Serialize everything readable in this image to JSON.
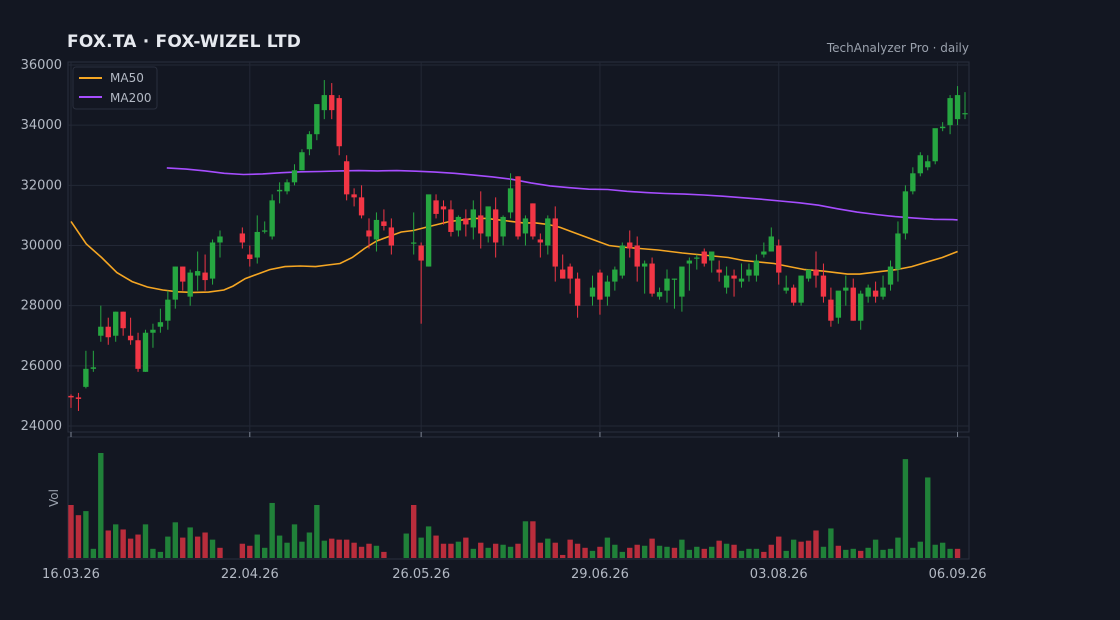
{
  "header": {
    "title": "FOX.TA  ·  FOX-WIZEL LTD",
    "source": "TechAnalyzer Pro · daily"
  },
  "colors": {
    "background": "#131722",
    "up": "#26a641",
    "down": "#f23645",
    "ma50": "#f5a623",
    "ma200": "#a64dff",
    "grid": "#232836"
  },
  "chart_data": {
    "type": "candlestick",
    "title": "FOX.TA  ·  FOX-WIZEL LTD",
    "ylim": [
      23800,
      36100
    ],
    "yticks": [
      24000,
      26000,
      28000,
      30000,
      32000,
      34000,
      36000
    ],
    "ytick_labels": [
      "24000",
      "26000",
      "28000",
      "30000",
      "32000",
      "34000",
      "36000"
    ],
    "xtick_labels": [
      "16.03.26",
      "22.04.26",
      "26.05.26",
      "29.06.26",
      "03.08.26",
      "06.09.26"
    ],
    "xtick_index": [
      0,
      24,
      47,
      71,
      95,
      119
    ],
    "grid": true,
    "legend_position": "top-left",
    "volume_label": "Vol",
    "series": [
      {
        "name": "MA50",
        "color": "#f5a623"
      },
      {
        "name": "MA200",
        "color": "#a64dff"
      }
    ],
    "candles": [
      [
        25000,
        25050,
        24600,
        24950
      ],
      [
        24950,
        25100,
        24500,
        24900
      ],
      [
        25300,
        26500,
        25250,
        25900
      ],
      [
        25900,
        26500,
        25800,
        25950
      ],
      [
        27000,
        28000,
        26800,
        27300
      ],
      [
        27300,
        27600,
        26700,
        26950
      ],
      [
        27000,
        27800,
        26800,
        27800
      ],
      [
        27800,
        27800,
        27000,
        27250
      ],
      [
        27000,
        27600,
        26700,
        26850
      ],
      [
        26850,
        27100,
        25800,
        25900
      ],
      [
        25800,
        27200,
        25800,
        27100
      ],
      [
        27100,
        27400,
        26600,
        27200
      ],
      [
        27300,
        27900,
        27100,
        27450
      ],
      [
        27500,
        28500,
        27200,
        28200
      ],
      [
        28200,
        29300,
        27900,
        29300
      ],
      [
        29300,
        29300,
        28500,
        28800
      ],
      [
        28300,
        29200,
        28000,
        29100
      ],
      [
        29000,
        29800,
        28500,
        29150
      ],
      [
        29100,
        29700,
        28500,
        28850
      ],
      [
        28900,
        30200,
        28700,
        30100
      ],
      [
        30100,
        30500,
        29600,
        30300
      ],
      [
        null,
        null,
        null,
        null
      ],
      [
        null,
        null,
        null,
        null
      ],
      [
        30400,
        30600,
        29900,
        30100
      ],
      [
        29700,
        30000,
        29300,
        29550
      ],
      [
        29600,
        31000,
        29400,
        30450
      ],
      [
        30500,
        30800,
        30400,
        30500
      ],
      [
        30300,
        31700,
        30200,
        31500
      ],
      [
        31800,
        32100,
        31400,
        31850
      ],
      [
        31800,
        32200,
        31700,
        32100
      ],
      [
        32100,
        32700,
        32000,
        32500
      ],
      [
        32500,
        33200,
        32500,
        33100
      ],
      [
        33200,
        33800,
        33000,
        33700
      ],
      [
        33700,
        34600,
        33500,
        34700
      ],
      [
        34500,
        35500,
        34200,
        35000
      ],
      [
        35000,
        35400,
        34200,
        34500
      ],
      [
        34900,
        35000,
        33000,
        33300
      ],
      [
        32800,
        33000,
        31500,
        31700
      ],
      [
        31700,
        31900,
        31300,
        31600
      ],
      [
        31600,
        32000,
        30900,
        31000
      ],
      [
        30500,
        30900,
        29900,
        30300
      ],
      [
        30200,
        31100,
        29800,
        30850
      ],
      [
        30800,
        31200,
        30500,
        30650
      ],
      [
        30600,
        30900,
        29700,
        30000
      ],
      [
        null,
        null,
        null,
        null
      ],
      [
        null,
        null,
        null,
        null
      ],
      [
        30100,
        31100,
        29700,
        30100
      ],
      [
        30000,
        30100,
        27400,
        29500
      ],
      [
        29300,
        31300,
        29300,
        31700
      ],
      [
        31500,
        31700,
        30900,
        31050
      ],
      [
        31300,
        31500,
        30700,
        31200
      ],
      [
        31200,
        31500,
        30300,
        30450
      ],
      [
        30500,
        31000,
        30300,
        30950
      ],
      [
        30900,
        31200,
        30300,
        30700
      ],
      [
        30600,
        31500,
        30200,
        31200
      ],
      [
        31000,
        31800,
        29900,
        30400
      ],
      [
        30300,
        31200,
        30100,
        31300
      ],
      [
        31200,
        31600,
        29600,
        30100
      ],
      [
        30300,
        31000,
        30000,
        30950
      ],
      [
        31100,
        32400,
        30900,
        31900
      ],
      [
        32300,
        32300,
        30200,
        30300
      ],
      [
        30400,
        31000,
        30000,
        30900
      ],
      [
        31400,
        31400,
        30200,
        30300
      ],
      [
        30200,
        30400,
        29600,
        30100
      ],
      [
        30000,
        31000,
        29700,
        30900
      ],
      [
        30900,
        31300,
        28800,
        29300
      ],
      [
        29200,
        29700,
        28900,
        28900
      ],
      [
        29300,
        29400,
        28400,
        28900
      ],
      [
        28900,
        29100,
        27600,
        28000
      ],
      [
        null,
        null,
        null,
        null
      ],
      [
        28300,
        29000,
        28000,
        28600
      ],
      [
        29100,
        29200,
        27700,
        28200
      ],
      [
        28300,
        29000,
        28000,
        28800
      ],
      [
        28800,
        29300,
        28500,
        29200
      ],
      [
        29000,
        30100,
        28900,
        30000
      ],
      [
        30100,
        30500,
        29600,
        29900
      ],
      [
        30000,
        30300,
        28800,
        29300
      ],
      [
        29300,
        29500,
        28400,
        29400
      ],
      [
        29400,
        29600,
        28300,
        28400
      ],
      [
        28300,
        28600,
        28200,
        28450
      ],
      [
        28500,
        29200,
        28100,
        28900
      ],
      [
        28900,
        28900,
        27900,
        28900
      ],
      [
        28300,
        29200,
        27800,
        29300
      ],
      [
        29400,
        29600,
        28500,
        29500
      ],
      [
        29600,
        29700,
        29200,
        29600
      ],
      [
        29800,
        29900,
        29300,
        29400
      ],
      [
        29500,
        29800,
        29100,
        29800
      ],
      [
        29200,
        29500,
        28800,
        29100
      ],
      [
        28600,
        29300,
        28400,
        29000
      ],
      [
        29000,
        29200,
        28300,
        28900
      ],
      [
        28800,
        29400,
        28600,
        28900
      ],
      [
        29000,
        29400,
        28800,
        29200
      ],
      [
        29000,
        29700,
        28800,
        29500
      ],
      [
        29700,
        30100,
        29600,
        29800
      ],
      [
        29800,
        30600,
        29800,
        30300
      ],
      [
        30000,
        30200,
        28700,
        29100
      ],
      [
        28500,
        29000,
        28400,
        28600
      ],
      [
        28600,
        28700,
        28000,
        28100
      ],
      [
        28100,
        29000,
        28000,
        29000
      ],
      [
        28900,
        29200,
        28800,
        29200
      ],
      [
        29200,
        29800,
        28600,
        29000
      ],
      [
        29000,
        29400,
        28100,
        28300
      ],
      [
        28200,
        28600,
        27300,
        27500
      ],
      [
        27600,
        28300,
        27400,
        28500
      ],
      [
        28500,
        29000,
        28000,
        28600
      ],
      [
        28600,
        28900,
        27500,
        27500
      ],
      [
        27500,
        28500,
        27200,
        28400
      ],
      [
        28300,
        28700,
        28100,
        28600
      ],
      [
        28500,
        28800,
        28100,
        28300
      ],
      [
        28300,
        29000,
        28200,
        28600
      ],
      [
        28700,
        29500,
        28500,
        29300
      ],
      [
        29200,
        30800,
        28800,
        30400
      ],
      [
        30400,
        32000,
        30200,
        31800
      ],
      [
        31800,
        32600,
        31700,
        32400
      ],
      [
        32400,
        33100,
        32300,
        33000
      ],
      [
        32600,
        33000,
        32500,
        32800
      ],
      [
        32800,
        33800,
        32700,
        33900
      ],
      [
        33900,
        34100,
        33800,
        33950
      ],
      [
        34000,
        35000,
        33700,
        34900
      ],
      [
        34200,
        35300,
        34000,
        35000
      ],
      [
        34400,
        35100,
        34200,
        34400
      ]
    ],
    "volumes": [
      52,
      42,
      46,
      9,
      103,
      27,
      33,
      28,
      19,
      23,
      33,
      9,
      6,
      21,
      35,
      20,
      30,
      21,
      25,
      18,
      10,
      0,
      0,
      14,
      12,
      23,
      10,
      54,
      22,
      15,
      33,
      16,
      25,
      52,
      17,
      19,
      18,
      18,
      15,
      11,
      14,
      12,
      6,
      0,
      0,
      24,
      52,
      20,
      31,
      22,
      14,
      14,
      16,
      20,
      9,
      15,
      10,
      14,
      13,
      11,
      14,
      36,
      36,
      15,
      19,
      15,
      3,
      18,
      14,
      10,
      7,
      11,
      20,
      13,
      6,
      10,
      13,
      12,
      19,
      12,
      11,
      10,
      18,
      8,
      11,
      9,
      11,
      17,
      14,
      13,
      7,
      9,
      9,
      6,
      13,
      21,
      7,
      18,
      16,
      17,
      27,
      11,
      29,
      12,
      8,
      9,
      7,
      10,
      18,
      8,
      9,
      20,
      97,
      10,
      16,
      79,
      13,
      15,
      9,
      9
    ],
    "volume_up": [
      0,
      0,
      1,
      1,
      1,
      0,
      1,
      0,
      0,
      0,
      1,
      1,
      1,
      1,
      1,
      0,
      1,
      0,
      0,
      1,
      0,
      0,
      0,
      0,
      0,
      1,
      1,
      1,
      1,
      1,
      1,
      1,
      1,
      1,
      1,
      0,
      0,
      0,
      0,
      0,
      0,
      1,
      0,
      0,
      0,
      1,
      0,
      1,
      1,
      0,
      0,
      0,
      1,
      0,
      1,
      0,
      1,
      0,
      1,
      1,
      0,
      1,
      0,
      0,
      1,
      0,
      0,
      0,
      0,
      0,
      1,
      0,
      1,
      1,
      1,
      0,
      0,
      1,
      0,
      1,
      1,
      0,
      1,
      1,
      1,
      0,
      1,
      0,
      1,
      0,
      1,
      1,
      1,
      0,
      0,
      0,
      1,
      1,
      0,
      0,
      0,
      1,
      1,
      0,
      1,
      1,
      0,
      1,
      1,
      1,
      1,
      1,
      1,
      1,
      1,
      1,
      1,
      1,
      1,
      0
    ],
    "ma50": [
      [
        0,
        30800
      ],
      [
        5,
        30050
      ],
      [
        10,
        29600
      ],
      [
        15,
        29100
      ],
      [
        20,
        28800
      ],
      [
        25,
        28620
      ],
      [
        30,
        28520
      ],
      [
        35,
        28460
      ],
      [
        40,
        28440
      ],
      [
        45,
        28450
      ],
      [
        50,
        28520
      ],
      [
        53,
        28650
      ],
      [
        57,
        28900
      ],
      [
        61,
        29050
      ],
      [
        65,
        29200
      ],
      [
        70,
        29300
      ],
      [
        75,
        29320
      ],
      [
        80,
        29300
      ],
      [
        84,
        29350
      ],
      [
        88,
        29400
      ],
      [
        92,
        29600
      ],
      [
        96,
        29900
      ],
      [
        100,
        30150
      ],
      [
        104,
        30300
      ],
      [
        108,
        30450
      ],
      [
        112,
        30500
      ],
      [
        116,
        30600
      ],
      [
        120,
        30700
      ],
      [
        124,
        30800
      ],
      [
        128,
        30850
      ],
      [
        132,
        30900
      ],
      [
        136,
        30900
      ],
      [
        140,
        30850
      ],
      [
        144,
        30800
      ],
      [
        148,
        30750
      ],
      [
        152,
        30750
      ],
      [
        156,
        30700
      ],
      [
        160,
        30600
      ],
      [
        164,
        30450
      ],
      [
        168,
        30300
      ],
      [
        172,
        30150
      ],
      [
        176,
        30000
      ],
      [
        180,
        29950
      ],
      [
        186,
        29900
      ],
      [
        192,
        29850
      ],
      [
        196,
        29800
      ],
      [
        200,
        29750
      ],
      [
        205,
        29700
      ],
      [
        210,
        29650
      ],
      [
        215,
        29600
      ],
      [
        220,
        29500
      ],
      [
        225,
        29450
      ],
      [
        230,
        29400
      ],
      [
        235,
        29300
      ],
      [
        240,
        29200
      ],
      [
        246,
        29150
      ],
      [
        250,
        29100
      ],
      [
        254,
        29050
      ],
      [
        258,
        29050
      ],
      [
        262,
        29100
      ],
      [
        266,
        29150
      ],
      [
        270,
        29200
      ],
      [
        275,
        29300
      ],
      [
        280,
        29450
      ],
      [
        285,
        29600
      ],
      [
        290,
        29800
      ]
    ]
  }
}
